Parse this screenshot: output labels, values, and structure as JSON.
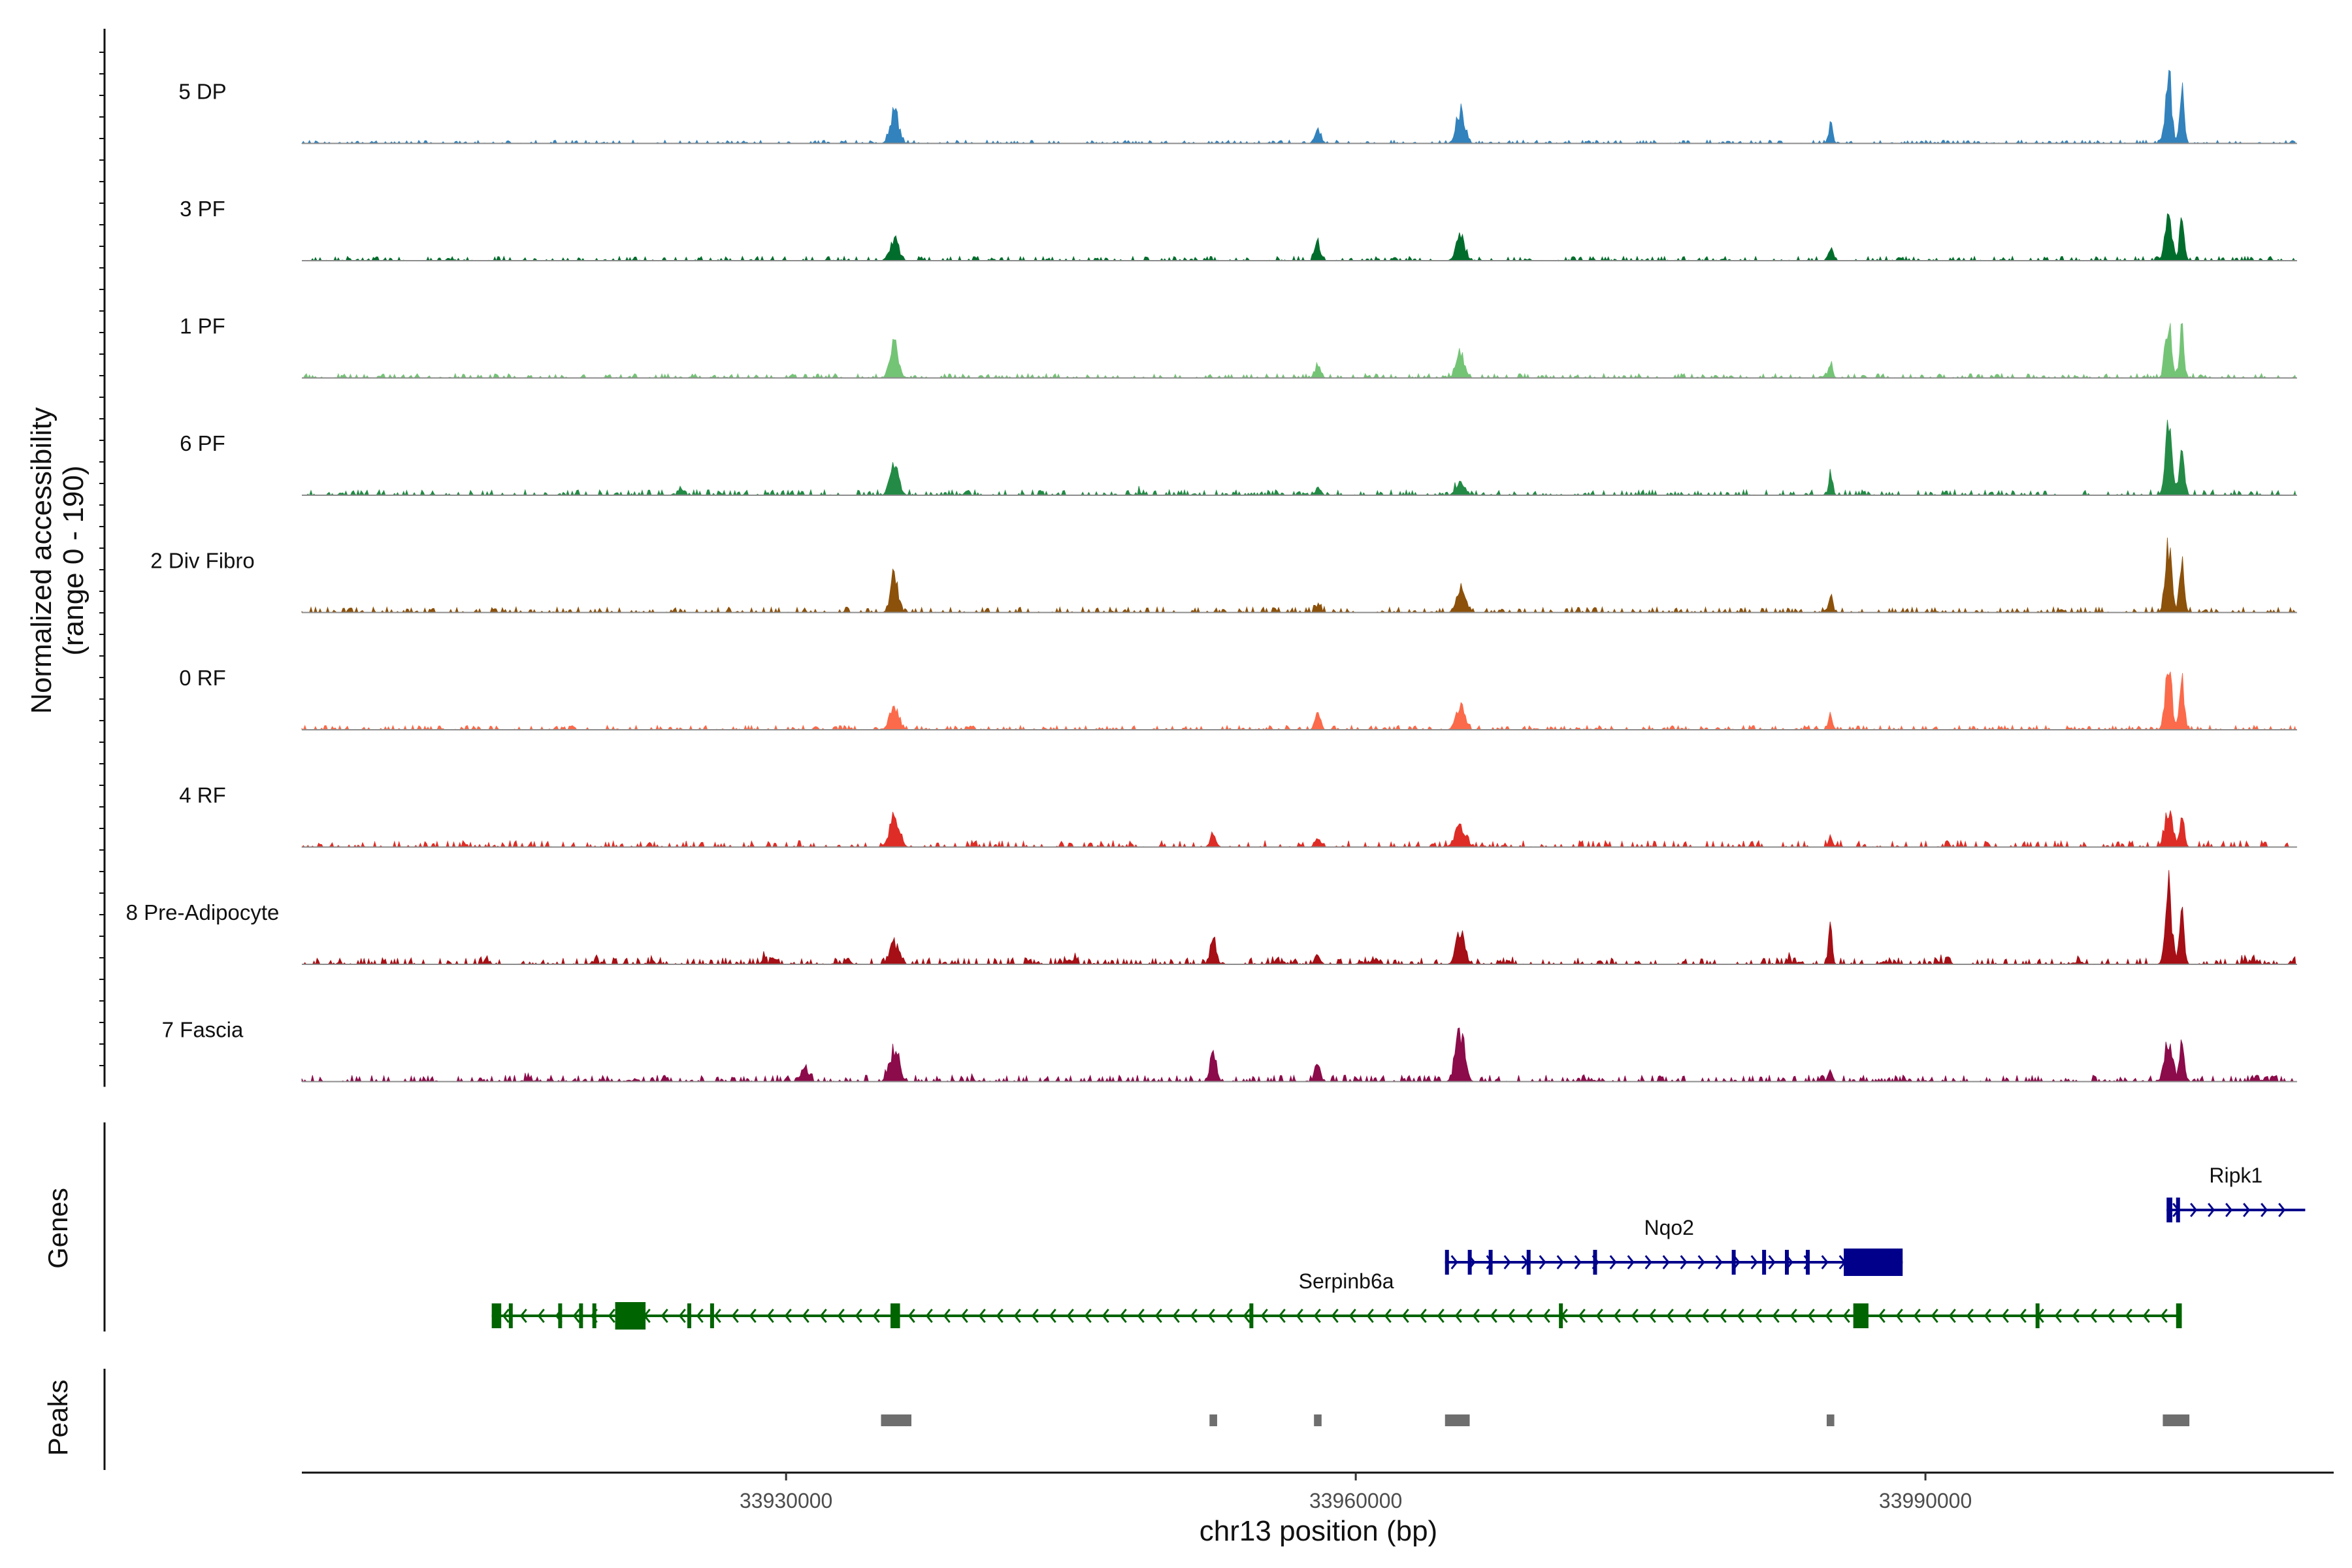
{
  "chart_data": {
    "type": "area",
    "region": {
      "chromosome": "chr13",
      "xlim": [
        33904500,
        34011500
      ]
    },
    "coverage": {
      "ylabel_line1": "Normalized accessibility",
      "ylabel_line2": "(range 0 - 190)",
      "ylim": [
        0,
        190
      ],
      "tracks": [
        {
          "name": "5 DP",
          "color": "#3182bd",
          "peaks": [
            [
              33935700,
              70,
              220
            ],
            [
              33958000,
              30,
              160
            ],
            [
              33965500,
              70,
              220
            ],
            [
              33985000,
              42,
              110
            ],
            [
              34002800,
              160,
              160
            ],
            [
              34003500,
              120,
              120
            ]
          ],
          "noise": 0.03,
          "background": []
        },
        {
          "name": "3 PF",
          "color": "#006d2c",
          "peaks": [
            [
              33935700,
              50,
              220
            ],
            [
              33958000,
              40,
              140
            ],
            [
              33965500,
              55,
              220
            ],
            [
              33985000,
              30,
              110
            ],
            [
              34002800,
              105,
              170
            ],
            [
              34003500,
              90,
              120
            ]
          ],
          "noise": 0.04,
          "background": []
        },
        {
          "name": "1 PF",
          "color": "#74c476",
          "peaks": [
            [
              33935700,
              70,
              220
            ],
            [
              33958000,
              30,
              140
            ],
            [
              33965500,
              52,
              220
            ],
            [
              33985000,
              28,
              110
            ],
            [
              34002800,
              115,
              170
            ],
            [
              34003500,
              100,
              120
            ]
          ],
          "noise": 0.04,
          "background": []
        },
        {
          "name": "6 PF",
          "color": "#238b45",
          "peaks": [
            [
              33935700,
              75,
              220
            ],
            [
              33958000,
              15,
              140
            ],
            [
              33965500,
              30,
              220
            ],
            [
              33985000,
              52,
              90
            ],
            [
              34002800,
              140,
              170
            ],
            [
              34003500,
              100,
              120
            ]
          ],
          "noise": 0.05,
          "background": [
            [
              33924500,
              12
            ],
            [
              33948500,
              8
            ]
          ]
        },
        {
          "name": "2 Div Fibro",
          "color": "#8c510a",
          "peaks": [
            [
              33935700,
              75,
              200
            ],
            [
              33958000,
              18,
              140
            ],
            [
              33965500,
              55,
              200
            ],
            [
              33985000,
              32,
              110
            ],
            [
              34002800,
              135,
              170
            ],
            [
              34003500,
              110,
              120
            ]
          ],
          "noise": 0.05,
          "background": []
        },
        {
          "name": "0 RF",
          "color": "#fb6a4a",
          "peaks": [
            [
              33935700,
              55,
              220
            ],
            [
              33958000,
              38,
              140
            ],
            [
              33965500,
              52,
              220
            ],
            [
              33985000,
              32,
              110
            ],
            [
              34002800,
              140,
              170
            ],
            [
              34003500,
              110,
              120
            ]
          ],
          "noise": 0.04,
          "background": []
        },
        {
          "name": "4 RF",
          "color": "#de2d26",
          "peaks": [
            [
              33935700,
              65,
              250
            ],
            [
              33952500,
              30,
              150
            ],
            [
              33958000,
              20,
              140
            ],
            [
              33965500,
              45,
              280
            ],
            [
              33985000,
              20,
              110
            ],
            [
              34002800,
              85,
              200
            ],
            [
              34003500,
              70,
              120
            ]
          ],
          "noise": 0.06,
          "background": []
        },
        {
          "name": "8 Pre-Adipocyte",
          "color": "#a50f15",
          "peaks": [
            [
              33935700,
              45,
              240
            ],
            [
              33952500,
              60,
              150
            ],
            [
              33958000,
              22,
              140
            ],
            [
              33965500,
              70,
              220
            ],
            [
              33985000,
              100,
              90
            ],
            [
              34002800,
              170,
              170
            ],
            [
              34003500,
              120,
              120
            ]
          ],
          "noise": 0.06,
          "background": [
            [
              33914000,
              12
            ],
            [
              33920000,
              14
            ],
            [
              33923000,
              10
            ],
            [
              33929000,
              16
            ],
            [
              33933000,
              22
            ],
            [
              33943000,
              12
            ],
            [
              33945000,
              14
            ],
            [
              33956000,
              14
            ],
            [
              33960500,
              10
            ],
            [
              33968000,
              8
            ],
            [
              33983000,
              14
            ],
            [
              33988000,
              12
            ],
            [
              33991000,
              16
            ],
            [
              33998000,
              10
            ],
            [
              34007000,
              16
            ],
            [
              34009500,
              12
            ]
          ]
        },
        {
          "name": "7 Fascia",
          "color": "#8c0b4a",
          "peaks": [
            [
              33935700,
              70,
              240
            ],
            [
              33931000,
              25,
              200
            ],
            [
              33952500,
              70,
              150
            ],
            [
              33958000,
              35,
              140
            ],
            [
              33965500,
              110,
              230
            ],
            [
              33985000,
              25,
              110
            ],
            [
              34002800,
              90,
              200
            ],
            [
              34003500,
              80,
              120
            ]
          ],
          "noise": 0.06,
          "background": [
            [
              33916500,
              8
            ],
            [
              33922000,
              8
            ],
            [
              33940000,
              8
            ],
            [
              33972500,
              8
            ],
            [
              33990000,
              8
            ],
            [
              34008000,
              8
            ]
          ]
        }
      ]
    },
    "genes": {
      "title": "Genes",
      "items": [
        {
          "name": "Ripk1",
          "strand": "+",
          "color": "#00008b",
          "start": 34002700,
          "end": 34010000,
          "exons": [
            [
              34002700,
              34003000
            ],
            [
              34003200,
              34003350
            ]
          ]
        },
        {
          "name": "Nqo2",
          "strand": "+",
          "color": "#00008b",
          "start": 33964700,
          "end": 33988800,
          "exons": [
            [
              33964700,
              33964900
            ],
            [
              33965900,
              33966000
            ],
            [
              33967000,
              33967080
            ],
            [
              33969000,
              33969080
            ],
            [
              33972500,
              33972600
            ],
            [
              33979800,
              33979900
            ],
            [
              33981400,
              33981500
            ],
            [
              33982600,
              33982700
            ],
            [
              33983700,
              33983800
            ],
            [
              33985700,
              33988800
            ]
          ]
        },
        {
          "name": "Serpinb6a",
          "strand": "-",
          "color": "#006400",
          "start": 33914500,
          "end": 34003500,
          "exons": [
            [
              33914500,
              33915000
            ],
            [
              33915400,
              33915500
            ],
            [
              33918000,
              33918100
            ],
            [
              33919100,
              33919200
            ],
            [
              33919800,
              33919900
            ],
            [
              33921000,
              33922600
            ],
            [
              33924800,
              33924900
            ],
            [
              33926000,
              33926100
            ],
            [
              33935500,
              33936000
            ],
            [
              33954400,
              33954500
            ],
            [
              33970700,
              33970900
            ],
            [
              33986200,
              33987000
            ],
            [
              33995800,
              33995900
            ],
            [
              34003200,
              34003500
            ]
          ]
        }
      ]
    },
    "peaks": {
      "title": "Peaks",
      "color": "#6e6e6e",
      "regions": [
        [
          33935000,
          33936600
        ],
        [
          33952300,
          33952700
        ],
        [
          33957800,
          33958200
        ],
        [
          33964700,
          33966000
        ],
        [
          33984800,
          33985200
        ],
        [
          34002500,
          34003900
        ]
      ]
    },
    "xaxis": {
      "label": "chr13 position (bp)",
      "ticks": [
        33930000,
        33960000,
        33990000
      ],
      "tick_labels": [
        "33930000",
        "33960000",
        "33990000"
      ]
    }
  }
}
